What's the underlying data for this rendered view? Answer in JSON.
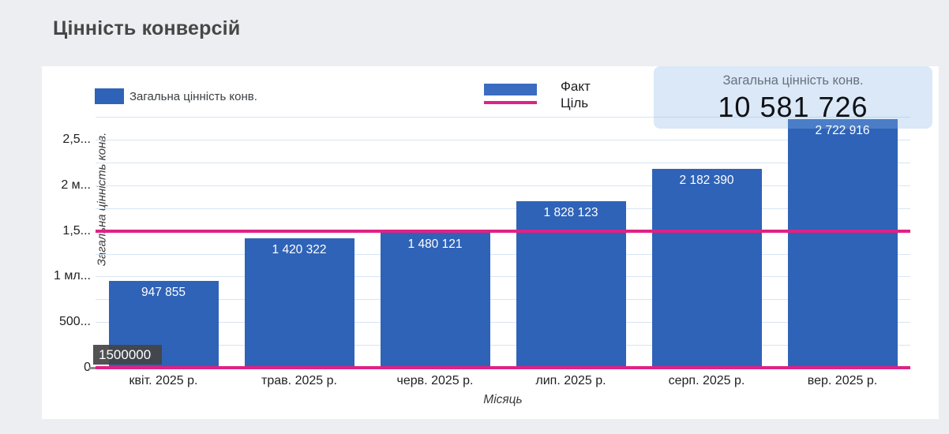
{
  "page": {
    "title": "Цінність конверсій",
    "background": "#eceef1"
  },
  "legend": {
    "series_label": "Загальна цінність конв."
  },
  "chart_legend": {
    "fact": "Факт",
    "goal": "Ціль"
  },
  "scorecard": {
    "label": "Загальна цінність конв.",
    "value": "10 581 726"
  },
  "tooltip": {
    "value": "1500000"
  },
  "chart_data": {
    "type": "bar",
    "title": "Цінність конверсій",
    "categories": [
      "квіт. 2025 р.",
      "трав. 2025 р.",
      "черв. 2025 р.",
      "лип. 2025 р.",
      "серп. 2025 р.",
      "вер. 2025 р."
    ],
    "series": [
      {
        "name": "Факт",
        "color": "#2f63b8",
        "values": [
          947855,
          1420322,
          1480121,
          1828123,
          2182390,
          2722916
        ],
        "value_labels": [
          "947 855",
          "1 420 322",
          "1 480 121",
          "1 828 123",
          "2 182 390",
          "2 722 916"
        ]
      }
    ],
    "target_lines": [
      {
        "name": "Ціль",
        "value": 1500000,
        "color": "#df2286"
      },
      {
        "name": "Ціль",
        "value": 0,
        "color": "#df2286"
      }
    ],
    "xlabel": "Місяць",
    "ylabel": "Загальна цінність конв.",
    "ylim": [
      0,
      2875000
    ],
    "ytick_step": 250000,
    "grid": true,
    "legend_position": "top",
    "yticks": [
      {
        "value": 0,
        "label": "0"
      },
      {
        "value": 500000,
        "label": "500..."
      },
      {
        "value": 1000000,
        "label": "1 мл..."
      },
      {
        "value": 1500000,
        "label": "1,5..."
      },
      {
        "value": 2000000,
        "label": "2 м..."
      },
      {
        "value": 2500000,
        "label": "2,5..."
      }
    ],
    "colors": {
      "bar": "#2f63b8",
      "target": "#df2286",
      "gridline": "#d7e5f5"
    }
  }
}
